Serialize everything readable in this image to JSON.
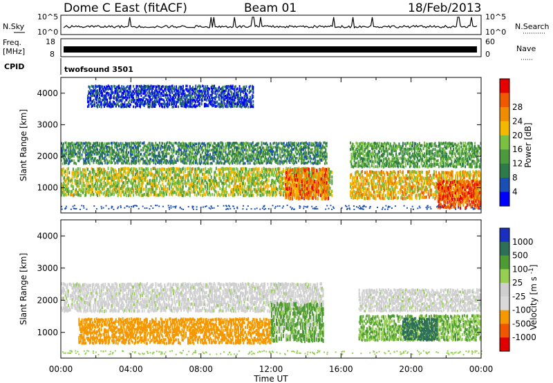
{
  "header": {
    "title": "Dome C East (fitACF)",
    "beam": "Beam 01",
    "date": "18/Feb/2013"
  },
  "status": {
    "nsky_label": "N.Sky",
    "nsearch_label": "N.Search",
    "freq_label": "Freq.",
    "freq_unit": "[MHz]",
    "nave_label": "Nave",
    "cpid_label": "CPID",
    "cpid_value": "twofsound 3501",
    "noise_left_ticks": [
      "10^5",
      "10^0"
    ],
    "noise_right_ticks": [
      "10^5",
      "10^0"
    ],
    "freq_left_ticks": [
      "18",
      "8"
    ],
    "nave_right_ticks": [
      "60",
      "0"
    ]
  },
  "colors": {
    "power": [
      "#0000ff",
      "#1a4fb4",
      "#2e7a4a",
      "#4c9a3c",
      "#7ac143",
      "#f5b800",
      "#f08c00",
      "#ef5a00",
      "#e60000"
    ],
    "velocity": [
      "#e00000",
      "#f05500",
      "#f59800",
      "#d9d9d9",
      "#cfcfcf",
      "#97cf53",
      "#4e9a33",
      "#2e6f58",
      "#1a2fc0"
    ]
  },
  "chart_data": [
    {
      "type": "heatmap",
      "panel": "power",
      "xlabel": "",
      "ylabel": "Slant Range [km]",
      "ylim": [
        200,
        4500
      ],
      "y_ticks": [
        "1000",
        "2000",
        "3000",
        "4000"
      ],
      "x_ticks": [
        "00:00",
        "04:00",
        "08:00",
        "12:00",
        "16:00",
        "20:00",
        "00:00"
      ],
      "colorbar": {
        "label": "Power [dB]",
        "ticks": [
          "4",
          "8",
          "12",
          "16",
          "20",
          "24",
          "28"
        ]
      },
      "bands": [
        {
          "t0": 0.0,
          "t1": 15.5,
          "r0": 800,
          "r1": 1700,
          "value": 18
        },
        {
          "t0": 0.0,
          "t1": 15.2,
          "r0": 1800,
          "r1": 2500,
          "value": 12
        },
        {
          "t0": 1.5,
          "t1": 11.0,
          "r0": 3600,
          "r1": 4300,
          "value": 6
        },
        {
          "t0": 12.8,
          "t1": 15.3,
          "r0": 700,
          "r1": 1700,
          "value": 26
        },
        {
          "t0": 16.5,
          "t1": 24.0,
          "r0": 700,
          "r1": 1600,
          "value": 22
        },
        {
          "t0": 16.5,
          "t1": 24.0,
          "r0": 1700,
          "r1": 2500,
          "value": 14
        },
        {
          "t0": 21.5,
          "t1": 24.0,
          "r0": 400,
          "r1": 1300,
          "value": 28
        }
      ]
    },
    {
      "type": "heatmap",
      "panel": "velocity",
      "xlabel": "Time UT",
      "ylabel": "Slant Range [km]",
      "ylim": [
        200,
        4500
      ],
      "y_ticks": [
        "1000",
        "2000",
        "3000",
        "4000"
      ],
      "x_ticks": [
        "00:00",
        "04:00",
        "08:00",
        "12:00",
        "16:00",
        "20:00",
        "00:00"
      ],
      "colorbar": {
        "label": "Velocity [m s^-1]",
        "ticks": [
          "1000",
          "500",
          "100",
          "25",
          "-25",
          "-100",
          "-500",
          "-1000"
        ]
      },
      "bands": [
        {
          "t0": 1.0,
          "t1": 12.0,
          "r0": 700,
          "r1": 1500,
          "value": -300
        },
        {
          "t0": 0.0,
          "t1": 15.0,
          "r0": 1700,
          "r1": 2600,
          "value": 0
        },
        {
          "t0": 12.0,
          "t1": 15.0,
          "r0": 800,
          "r1": 2000,
          "value": 150
        },
        {
          "t0": 17.0,
          "t1": 24.0,
          "r0": 800,
          "r1": 1600,
          "value": 100
        },
        {
          "t0": 19.5,
          "t1": 21.5,
          "r0": 800,
          "r1": 1500,
          "value": 800
        },
        {
          "t0": 17.0,
          "t1": 24.0,
          "r0": 1700,
          "r1": 2400,
          "value": 0
        }
      ]
    }
  ]
}
